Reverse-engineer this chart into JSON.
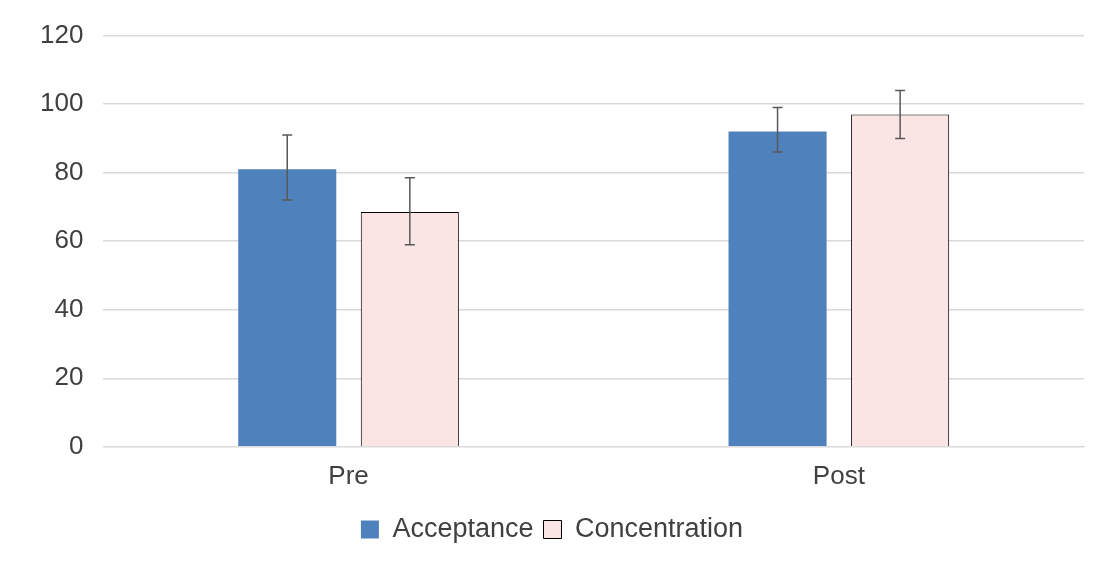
{
  "chart_data": {
    "type": "bar",
    "categories": [
      "Pre",
      "Post"
    ],
    "series": [
      {
        "name": "Acceptance",
        "color": "#4f81bd",
        "values": [
          81,
          92
        ],
        "errors": [
          [
            72,
            91
          ],
          [
            86,
            99
          ]
        ]
      },
      {
        "name": "Concentration",
        "color": "#fbe4e4",
        "values": [
          68.5,
          97
        ],
        "errors": [
          [
            59,
            78.5
          ],
          [
            90,
            104
          ]
        ]
      }
    ],
    "ylim": [
      0,
      120
    ],
    "yticks": [
      0,
      20,
      40,
      60,
      80,
      100,
      120
    ],
    "grid": "y",
    "legend": "bottom"
  }
}
